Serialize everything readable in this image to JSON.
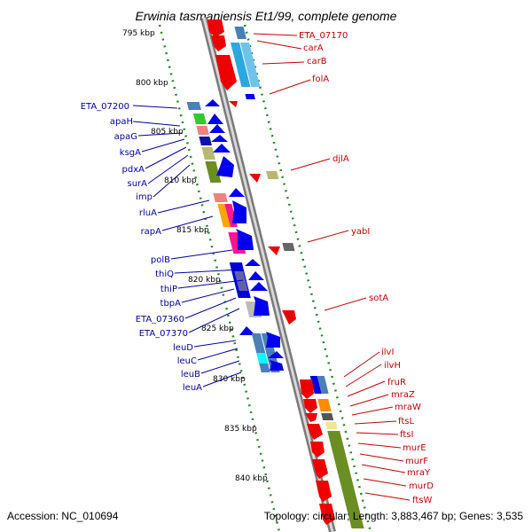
{
  "title": "Erwinia tasmaniensis Et1/99, complete genome",
  "accession": "Accession: NC_010694",
  "footer_info": "Topology: circular; Length: 3,883,467 bp; Genes: 3,535",
  "colors": {
    "forward_label": "#0000aa",
    "reverse_label": "#cc0000",
    "tick": "#228b22",
    "backbone": "#8c8c8c",
    "forward_arrow": "#0000ee",
    "reverse_arrow": "#ee0000"
  },
  "ticks": [
    "795 kbp",
    "800 kbp",
    "805 kbp",
    "810 kbp",
    "815 kbp",
    "820 kbp",
    "825 kbp",
    "830 kbp",
    "835 kbp",
    "840 kbp"
  ],
  "forward_genes": [
    "ETA_07200",
    "apaH",
    "apaG",
    "ksgA",
    "pdxA",
    "surA",
    "imp",
    "rluA",
    "rapA",
    "polB",
    "thiQ",
    "thiP",
    "tbpA",
    "ETA_07360",
    "ETA_07370",
    "leuD",
    "leuC",
    "leuB",
    "leuA"
  ],
  "reverse_genes": [
    "ETA_07170",
    "carA",
    "carB",
    "folA",
    "djlA",
    "yabI",
    "sotA",
    "ilvI",
    "ilvH",
    "fruR",
    "mraZ",
    "mraW",
    "ftsL",
    "ftsI",
    "murE",
    "murF",
    "mraY",
    "murD",
    "ftsW"
  ]
}
